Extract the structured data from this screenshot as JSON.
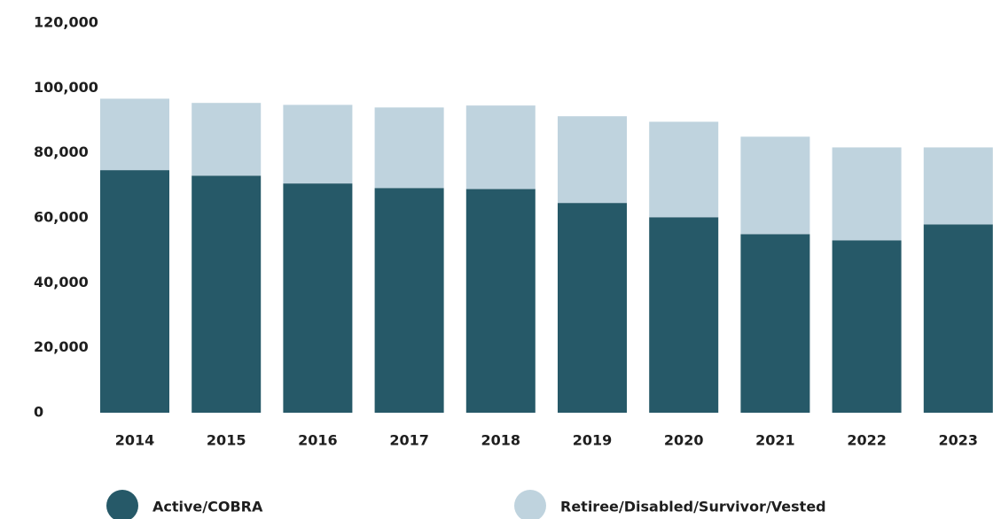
{
  "chart_data": {
    "type": "stacked_bar",
    "categories": [
      "2014",
      "2015",
      "2016",
      "2017",
      "2018",
      "2019",
      "2020",
      "2021",
      "2022",
      "2023"
    ],
    "series": [
      {
        "name": "Active/COBRA",
        "color": "#265968",
        "values": [
          74700,
          73000,
          70600,
          69200,
          68900,
          64600,
          60200,
          55000,
          53100,
          58000
        ]
      },
      {
        "name": "Retiree/Disabled/Survivor/Vested",
        "color": "#bfd3de",
        "values": [
          22000,
          22400,
          24200,
          24800,
          25700,
          26700,
          29400,
          30000,
          28600,
          23700
        ]
      }
    ],
    "ylim": [
      0,
      120000
    ],
    "yticks": [
      0,
      {
        "value": 20000,
        "label": "20,000"
      },
      {
        "value": 40000,
        "label": "40,000"
      },
      {
        "value": 60000,
        "label": "60,000"
      },
      {
        "value": 80000,
        "label": "80,000"
      },
      {
        "value": 100000,
        "label": "100,000"
      },
      {
        "value": 120000,
        "label": "120,000"
      }
    ],
    "grid": false,
    "legend": "bottom"
  }
}
